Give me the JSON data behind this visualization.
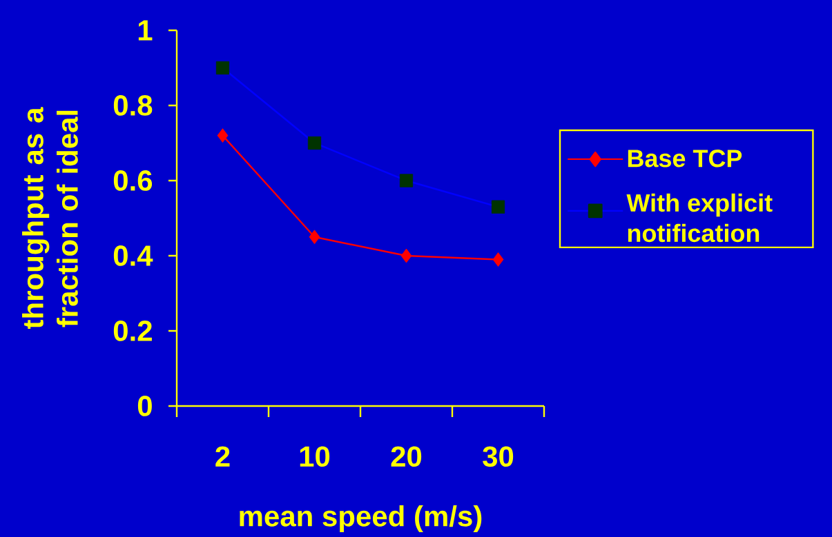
{
  "chart_data": {
    "type": "line",
    "xlabel": "mean speed (m/s)",
    "ylabel": "throughput as a fraction of ideal",
    "categories": [
      "2",
      "10",
      "20",
      "30"
    ],
    "series": [
      {
        "name": "Base TCP",
        "color": "#ff0000",
        "marker": "diamond",
        "colors": [
          "#ff0000",
          "#ff0000",
          "#ff0000",
          "#ff0000"
        ],
        "values": [
          0.72,
          0.45,
          0.4,
          0.39
        ]
      },
      {
        "name": "With explicit notification",
        "color": "#0000ff",
        "marker": "square",
        "colors": [
          "#003300",
          "#003300",
          "#003300",
          "#003300"
        ],
        "values": [
          0.9,
          0.7,
          0.6,
          0.53
        ]
      }
    ],
    "ylim": [
      0,
      1
    ],
    "yticks": [
      0,
      0.2,
      0.4,
      0.6,
      0.8,
      1
    ],
    "legend": "right",
    "line_style": "solid"
  }
}
